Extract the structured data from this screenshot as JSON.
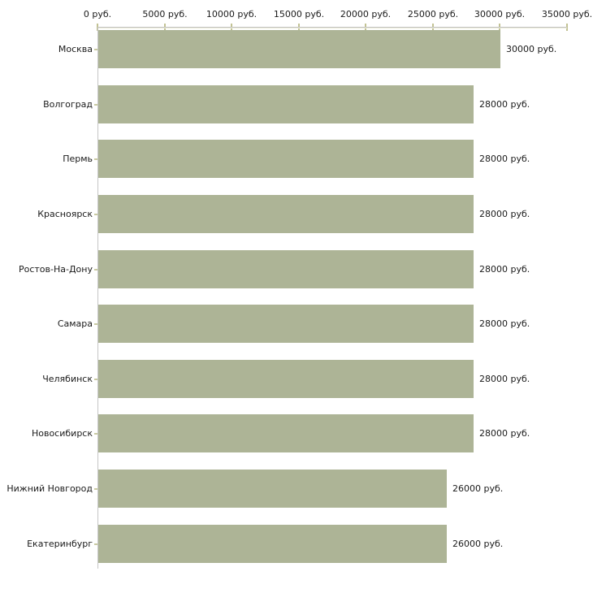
{
  "chart_data": {
    "type": "bar",
    "orientation": "horizontal",
    "title": "",
    "xlabel": "",
    "ylabel": "",
    "unit": "руб.",
    "categories": [
      "Москва",
      "Волгоград",
      "Пермь",
      "Красноярск",
      "Ростов-На-Дону",
      "Самара",
      "Челябинск",
      "Новосибирск",
      "Нижний Новгород",
      "Екатеринбург"
    ],
    "values": [
      30000,
      28000,
      28000,
      28000,
      28000,
      28000,
      28000,
      28000,
      26000,
      26000
    ],
    "value_labels": [
      "30000 руб.",
      "28000 руб.",
      "28000 руб.",
      "28000 руб.",
      "28000 руб.",
      "28000 руб.",
      "28000 руб.",
      "28000 руб.",
      "26000 руб.",
      "26000 руб."
    ],
    "x_ticks": [
      0,
      5000,
      10000,
      15000,
      20000,
      25000,
      30000,
      35000
    ],
    "x_tick_labels": [
      "0 руб.",
      "5000 руб.",
      "10000 руб.",
      "15000 руб.",
      "20000 руб.",
      "25000 руб.",
      "30000 руб.",
      "35000 руб."
    ],
    "xlim": [
      0,
      35000
    ],
    "grid": false,
    "legend": "none",
    "colors": {
      "bar": "#adb496",
      "axis": "#c0c0c0",
      "tick": "#c2c293",
      "text": "#1a1a1a",
      "background": "#ffffff"
    }
  }
}
